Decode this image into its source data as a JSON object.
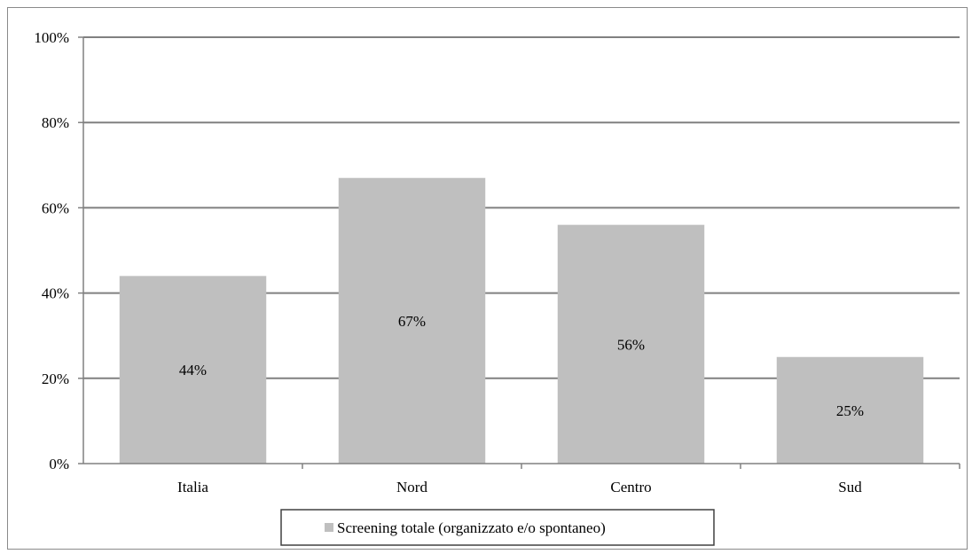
{
  "chart_data": {
    "type": "bar",
    "categories": [
      "Italia",
      "Nord",
      "Centro",
      "Sud"
    ],
    "series": [
      {
        "name": "Screening totale (organizzato e/o spontaneo)",
        "values": [
          44,
          67,
          56,
          25
        ],
        "data_labels": [
          "44%",
          "67%",
          "56%",
          "25%"
        ]
      }
    ],
    "ylim": [
      0,
      100
    ],
    "yticks": [
      0,
      20,
      40,
      60,
      80,
      100
    ],
    "ytick_labels": [
      "0%",
      "20%",
      "40%",
      "60%",
      "80%",
      "100%"
    ],
    "grid": true,
    "legend_position": "bottom",
    "colors": {
      "bar": "#bfbfbf",
      "grid": "#808080",
      "legend_border": "#404040"
    }
  }
}
